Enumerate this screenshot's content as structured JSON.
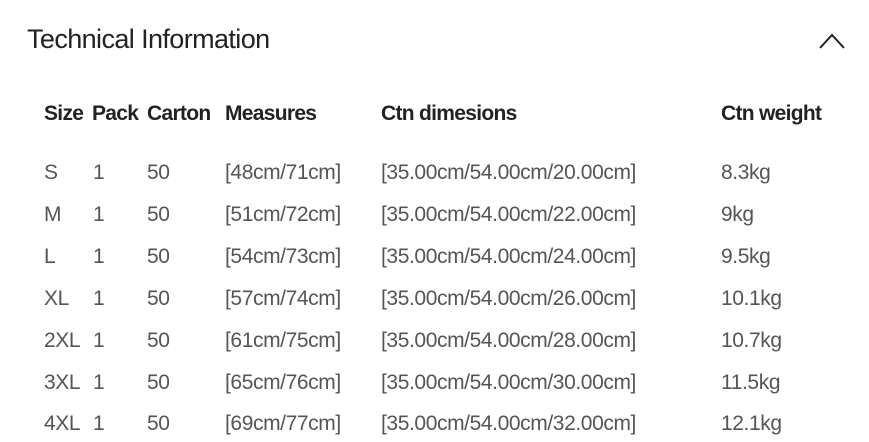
{
  "section": {
    "title": "Technical Information",
    "toggle_icon": "chevron-up-icon",
    "expanded": true
  },
  "table": {
    "headers": [
      "Size",
      "Pack",
      "Carton",
      "Measures",
      "Ctn dimesions",
      "Ctn weight"
    ],
    "rows": [
      [
        "S",
        "1",
        "50",
        "[48cm/71cm]",
        "[35.00cm/54.00cm/20.00cm]",
        "8.3kg"
      ],
      [
        "M",
        "1",
        "50",
        "[51cm/72cm]",
        "[35.00cm/54.00cm/22.00cm]",
        "9kg"
      ],
      [
        "L",
        "1",
        "50",
        "[54cm/73cm]",
        "[35.00cm/54.00cm/24.00cm]",
        "9.5kg"
      ],
      [
        "XL",
        "1",
        "50",
        "[57cm/74cm]",
        "[35.00cm/54.00cm/26.00cm]",
        "10.1kg"
      ],
      [
        "2XL",
        "1",
        "50",
        "[61cm/75cm]",
        "[35.00cm/54.00cm/28.00cm]",
        "10.7kg"
      ],
      [
        "3XL",
        "1",
        "50",
        "[65cm/76cm]",
        "[35.00cm/54.00cm/30.00cm]",
        "11.5kg"
      ],
      [
        "4XL",
        "1",
        "50",
        "[69cm/77cm]",
        "[35.00cm/54.00cm/32.00cm]",
        "12.1kg"
      ]
    ]
  }
}
